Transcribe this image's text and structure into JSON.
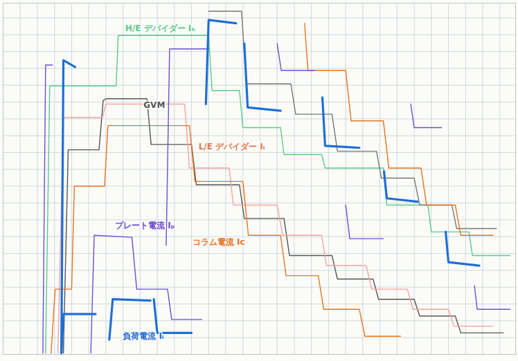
{
  "chart_data": {
    "type": "line",
    "xlim": [
      0,
      748
    ],
    "ylim": [
      0,
      522
    ],
    "xticks": [
      0,
      25,
      50,
      75,
      100,
      125,
      150,
      175,
      200,
      225,
      250,
      275,
      300,
      325,
      350,
      375,
      400,
      425,
      450,
      475,
      500,
      525,
      550,
      575,
      600,
      625,
      650,
      675,
      700,
      725
    ],
    "yticks": [
      0,
      25,
      50,
      75,
      100,
      125,
      150,
      175,
      200,
      225,
      250,
      275,
      300,
      325,
      350,
      375,
      400,
      425,
      450,
      475,
      500
    ],
    "grid": true,
    "tick_labels": false,
    "series": [
      {
        "name": "H/E デバイダー Iₕ",
        "color": "#5cc98c",
        "x": [
          62,
          68,
          165,
          168,
          300,
          305,
          345,
          350,
          405,
          410,
          465,
          470,
          555,
          560,
          620,
          625,
          680,
          685,
          740
        ],
        "values": [
          2,
          399,
          399,
          474,
          474,
          392,
          392,
          337,
          337,
          297,
          297,
          277,
          277,
          222,
          222,
          182,
          182,
          147,
          147
        ]
      },
      {
        "name": "GVM",
        "color": "#555555",
        "x": [
          88,
          95,
          140,
          146,
          150,
          210,
          216,
          275,
          282,
          345,
          352,
          410,
          418,
          480,
          488,
          540,
          548,
          600,
          608,
          660,
          668,
          730
        ],
        "values": [
          2,
          304,
          304,
          377,
          380,
          380,
          312,
          312,
          252,
          252,
          202,
          202,
          147,
          147,
          112,
          112,
          82,
          82,
          57,
          57,
          32,
          32
        ]
      },
      {
        "color": "#777777",
        "x": [
          300,
          348,
          355,
          420,
          427,
          480,
          488,
          545,
          552,
          600,
          608,
          655,
          662,
          720
        ],
        "values": [
          510,
          510,
          402,
          402,
          357,
          357,
          302,
          302,
          262,
          262,
          222,
          222,
          187,
          187
        ]
      },
      {
        "name": "L/E デバイダー Iₗ",
        "color": "#f4a3a0",
        "x": [
          80,
          88,
          145,
          150,
          265,
          272,
          330,
          336,
          400,
          408,
          465,
          472,
          530,
          538,
          590,
          598,
          650,
          658,
          715
        ],
        "values": [
          2,
          352,
          352,
          372,
          372,
          277,
          277,
          222,
          222,
          177,
          177,
          132,
          132,
          97,
          97,
          67,
          67,
          42,
          42
        ]
      },
      {
        "name": "コラム電流 Iᴄ",
        "color": "#e8731e",
        "x": [
          70,
          76,
          100,
          104,
          148,
          153,
          272,
          280,
          350,
          358,
          405,
          413,
          460,
          468,
          520,
          528,
          580
        ],
        "values": [
          2,
          97,
          97,
          250,
          250,
          340,
          340,
          257,
          257,
          177,
          177,
          117,
          117,
          67,
          67,
          27,
          27
        ]
      },
      {
        "color": "#e8731e",
        "x": [
          440,
          445,
          500,
          508,
          555,
          563,
          610,
          618,
          660,
          668,
          715
        ],
        "values": [
          492,
          422,
          422,
          347,
          347,
          277,
          277,
          222,
          222,
          177,
          177
        ]
      },
      {
        "name": "プレート電流 Iₚ",
        "color": "#6b4fcf",
        "x": [
          128,
          133,
          188,
          195,
          240,
          246,
          290
        ],
        "values": [
          2,
          177,
          174,
          97,
          97,
          52,
          52
        ]
      },
      {
        "color": "#6b4fcf",
        "x": [
          58,
          62,
          72,
          150,
          238,
          243,
          300,
          320,
          400,
          406,
          455,
          470,
          500,
          506,
          555,
          570,
          595,
          600,
          640,
          660,
          688,
          692,
          740
        ],
        "values": [
          2,
          430,
          430,
          null,
          162,
          454,
          454,
          null,
          462,
          422,
          422,
          null,
          222,
          172,
          172,
          null,
          372,
          337,
          337,
          null,
          102,
          67,
          67
        ]
      },
      {
        "color": "#1f6fd6",
        "line_style": "thick",
        "x": [
          85,
          88,
          105,
          200,
          296,
          300,
          340,
          348,
          352,
          357,
          405,
          440,
          466,
          470,
          520,
          540,
          556,
          560,
          605,
          630,
          646,
          650,
          695
        ],
        "values": [
          2,
          437,
          427,
          null,
          372,
          497,
          492,
          null,
          462,
          367,
          362,
          null,
          382,
          310,
          307,
          null,
          272,
          232,
          227,
          null,
          182,
          137,
          132
        ]
      },
      {
        "name": "負荷電流 Iₗ",
        "color": "#1f6fd6",
        "line_style": "thick",
        "x": [
          85,
          88,
          135,
          140,
          155,
          160,
          215,
          218,
          220,
          225,
          275
        ],
        "values": [
          2,
          60,
          60,
          null,
          22,
          82,
          80,
          null,
          82,
          32,
          32
        ]
      }
    ]
  }
}
